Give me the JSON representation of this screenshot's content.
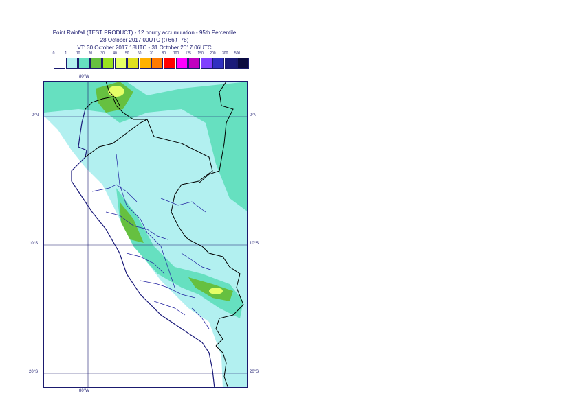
{
  "header": {
    "line1": "Point Rainfall (TEST PRODUCT) - 12 hourly accumulation - 95th Percentile",
    "line2": "28 October 2017 00UTC (t+66,t+78)",
    "line3": "VT: 30 October 2017 18UTC - 31 October 2017 06UTC"
  },
  "legend": {
    "labels": [
      "0",
      "1",
      "10",
      "20",
      "30",
      "40",
      "50",
      "60",
      "70",
      "80",
      "100",
      "125",
      "150",
      "200",
      "300",
      "500"
    ],
    "colors": [
      "#ffffff",
      "#b2f0f0",
      "#66e0c0",
      "#66c040",
      "#99e020",
      "#e6ff66",
      "#e0e020",
      "#ffb000",
      "#ff7a00",
      "#ff0000",
      "#ff00ff",
      "#c000c0",
      "#8040ff",
      "#3030c0",
      "#1a1a7a",
      "#0a0a40"
    ]
  },
  "map": {
    "labels": {
      "lon_top": "80°W",
      "lon_bottom": "80°W",
      "lat_0_left": "0°N",
      "lat_0_right": "0°N",
      "lat_10_left": "10°S",
      "lat_10_right": "10°S",
      "lat_20_left": "20°S",
      "lat_20_right": "20°S"
    }
  }
}
